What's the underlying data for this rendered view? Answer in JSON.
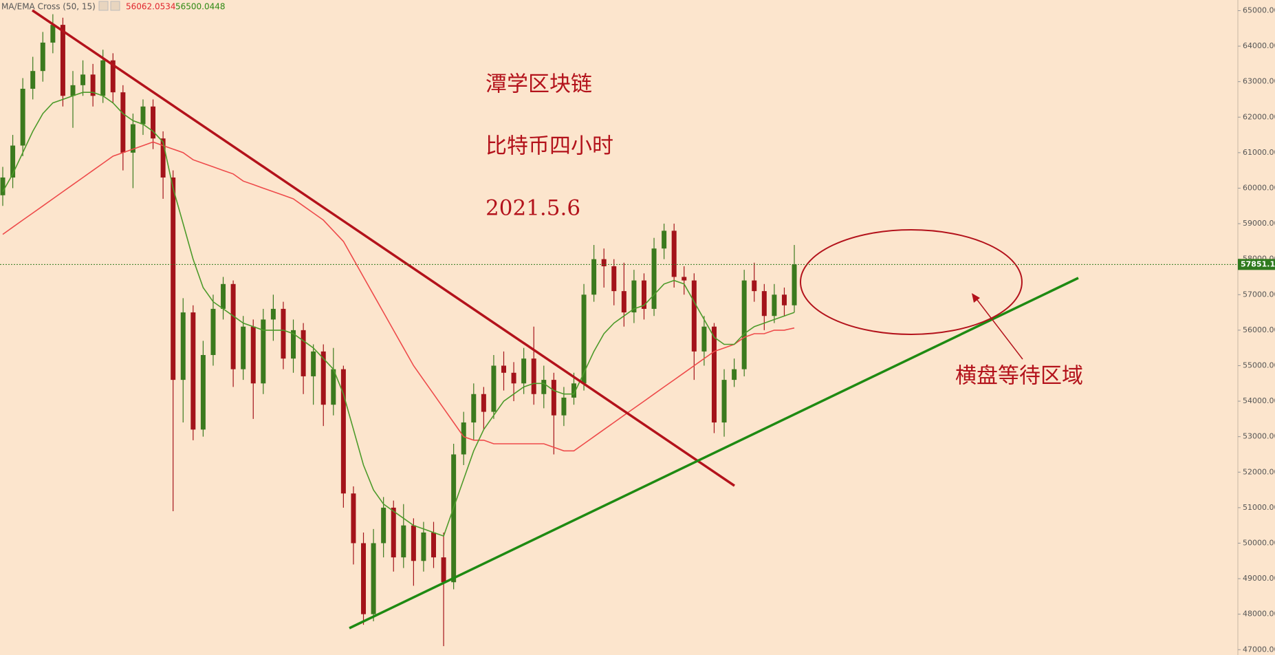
{
  "chart_data": {
    "type": "candlestick",
    "indicator": "MA/EMA Cross (50, 15)",
    "up_color": "#3b7a1e",
    "down_color": "#a3131a",
    "open": [
      59800,
      60300,
      61200,
      62800,
      63300,
      64100,
      64600,
      62600,
      62900,
      63200,
      62600,
      63600,
      62700,
      61000,
      61800,
      62300,
      61400,
      60300,
      54600,
      56500,
      53200,
      55300,
      56600,
      57300,
      54900,
      56100,
      54500,
      56300,
      56600,
      55200,
      56000,
      54700,
      55400,
      53900,
      54900,
      51400,
      50000,
      48000,
      50000,
      51000,
      49600,
      50500,
      49500,
      50300,
      49600,
      48900,
      52500,
      53400,
      54200,
      53700,
      55000,
      54800,
      54500,
      55200,
      54200,
      54600,
      53600,
      54100,
      54500,
      57000,
      58000,
      57800,
      57100,
      56500,
      57400,
      56600,
      58300,
      58800,
      57500,
      57400,
      55400,
      56100,
      53400,
      54600,
      54900,
      57400,
      57100,
      56400,
      57000,
      56700
    ],
    "high": [
      60600,
      61500,
      63100,
      63700,
      64400,
      64900,
      64800,
      63300,
      63600,
      63500,
      63900,
      63800,
      62900,
      62100,
      62500,
      62500,
      61600,
      60500,
      56900,
      56700,
      55700,
      57000,
      57500,
      57400,
      56400,
      56300,
      56600,
      57000,
      56800,
      56300,
      56200,
      55600,
      55600,
      55500,
      55000,
      51600,
      50300,
      50400,
      51300,
      51200,
      51100,
      50700,
      50600,
      50600,
      50300,
      52800,
      53700,
      54500,
      54400,
      55300,
      55400,
      55100,
      55500,
      56100,
      55000,
      54800,
      54400,
      54800,
      57300,
      58400,
      58300,
      58000,
      57900,
      57700,
      57600,
      58600,
      59000,
      59000,
      57800,
      57600,
      56400,
      56200,
      54900,
      55200,
      57700,
      57900,
      57300,
      57300,
      57200,
      58400
    ],
    "low": [
      59500,
      60000,
      60900,
      62500,
      63000,
      63800,
      62300,
      61700,
      62600,
      62300,
      62400,
      62400,
      60500,
      60000,
      61500,
      61100,
      59700,
      50900,
      53400,
      52900,
      53000,
      55000,
      56300,
      54400,
      54600,
      53500,
      54200,
      55700,
      54900,
      54800,
      54200,
      53900,
      53300,
      53600,
      51000,
      49400,
      47700,
      47800,
      49600,
      49200,
      49300,
      48800,
      49200,
      49300,
      47100,
      48700,
      52200,
      52900,
      53200,
      53500,
      54300,
      54000,
      54200,
      53900,
      53800,
      52500,
      53300,
      53900,
      54300,
      56800,
      57200,
      56700,
      56100,
      56200,
      56300,
      56400,
      58000,
      57200,
      57000,
      54600,
      55000,
      53100,
      53000,
      54400,
      54700,
      56800,
      56000,
      56200,
      56400,
      56500
    ],
    "close": [
      60300,
      61200,
      62800,
      63300,
      64100,
      64600,
      62600,
      62900,
      63200,
      62600,
      63600,
      62700,
      61000,
      61800,
      62300,
      61400,
      60300,
      54600,
      56500,
      53200,
      55300,
      56600,
      57300,
      54900,
      56100,
      54500,
      56300,
      56600,
      55200,
      56000,
      54700,
      55400,
      53900,
      54900,
      51400,
      50000,
      48000,
      50000,
      51000,
      49600,
      50500,
      49500,
      50300,
      49600,
      48900,
      52500,
      53400,
      54200,
      53700,
      55000,
      54800,
      54500,
      55200,
      54200,
      54600,
      53600,
      54100,
      54500,
      57000,
      58000,
      57800,
      57100,
      56500,
      57400,
      56600,
      58300,
      58800,
      57500,
      57400,
      55400,
      56100,
      53400,
      54600,
      54900,
      57400,
      57100,
      56400,
      57000,
      56700,
      57851.15
    ],
    "series": [
      {
        "color": "#ee4a4a",
        "values": [
          58700,
          58900,
          59100,
          59300,
          59500,
          59700,
          59900,
          60100,
          60300,
          60500,
          60700,
          60900,
          61000,
          61100,
          61200,
          61300,
          61200,
          61100,
          61000,
          60800,
          60700,
          60600,
          60500,
          60400,
          60200,
          60100,
          60000,
          59900,
          59800,
          59700,
          59500,
          59300,
          59100,
          58800,
          58500,
          58000,
          57500,
          57000,
          56500,
          56000,
          55500,
          55000,
          54600,
          54200,
          53800,
          53400,
          53000,
          52900,
          52900,
          52800,
          52800,
          52800,
          52800,
          52800,
          52800,
          52700,
          52600,
          52600,
          52800,
          53000,
          53200,
          53400,
          53600,
          53800,
          54000,
          54200,
          54400,
          54600,
          54800,
          55000,
          55200,
          55400,
          55500,
          55600,
          55800,
          55900,
          55900,
          56000,
          56000,
          56062.0534
        ]
      },
      {
        "color": "#4c9a2a",
        "values": [
          59900,
          60400,
          61000,
          61600,
          62100,
          62400,
          62500,
          62600,
          62700,
          62700,
          62600,
          62400,
          62100,
          61900,
          61800,
          61600,
          61300,
          60000,
          59000,
          58000,
          57200,
          56800,
          56600,
          56400,
          56200,
          56100,
          56000,
          56000,
          56000,
          55900,
          55700,
          55500,
          55200,
          54900,
          54200,
          53200,
          52200,
          51500,
          51100,
          50900,
          50700,
          50500,
          50400,
          50300,
          50200,
          51000,
          51800,
          52600,
          53200,
          53600,
          54000,
          54200,
          54400,
          54500,
          54500,
          54300,
          54200,
          54200,
          54800,
          55400,
          55900,
          56200,
          56400,
          56600,
          56700,
          57000,
          57300,
          57400,
          57300,
          56800,
          56300,
          55800,
          55600,
          55600,
          55900,
          56100,
          56200,
          56300,
          56400,
          56500.0448
        ]
      }
    ],
    "ylim": [
      46850,
      65300
    ],
    "yticks": [
      {
        "value": 47000,
        "label": "47000.00"
      },
      {
        "value": 48000,
        "label": "48000.00"
      },
      {
        "value": 49000,
        "label": "49000.00"
      },
      {
        "value": 50000,
        "label": "50000.00"
      },
      {
        "value": 51000,
        "label": "51000.00"
      },
      {
        "value": 52000,
        "label": "52000.00"
      },
      {
        "value": 53000,
        "label": "53000.00"
      },
      {
        "value": 54000,
        "label": "54000.00"
      },
      {
        "value": 55000,
        "label": "55000.00"
      },
      {
        "value": 56000,
        "label": "56000.00"
      },
      {
        "value": 57000,
        "label": "57000.00"
      },
      {
        "value": 58000,
        "label": "58000.00"
      },
      {
        "value": 59000,
        "label": "59000.00"
      },
      {
        "value": 60000,
        "label": "60000.00"
      },
      {
        "value": 61000,
        "label": "61000.00"
      },
      {
        "value": 62000,
        "label": "62000.00"
      },
      {
        "value": 63000,
        "label": "63000.00"
      },
      {
        "value": 64000,
        "label": "64000.00"
      },
      {
        "value": 65000,
        "label": "65000.00"
      }
    ],
    "annotations": [
      "潭学区块链",
      "比特币四小时",
      "2021.5.6",
      "横盘等待区域"
    ]
  }
}
